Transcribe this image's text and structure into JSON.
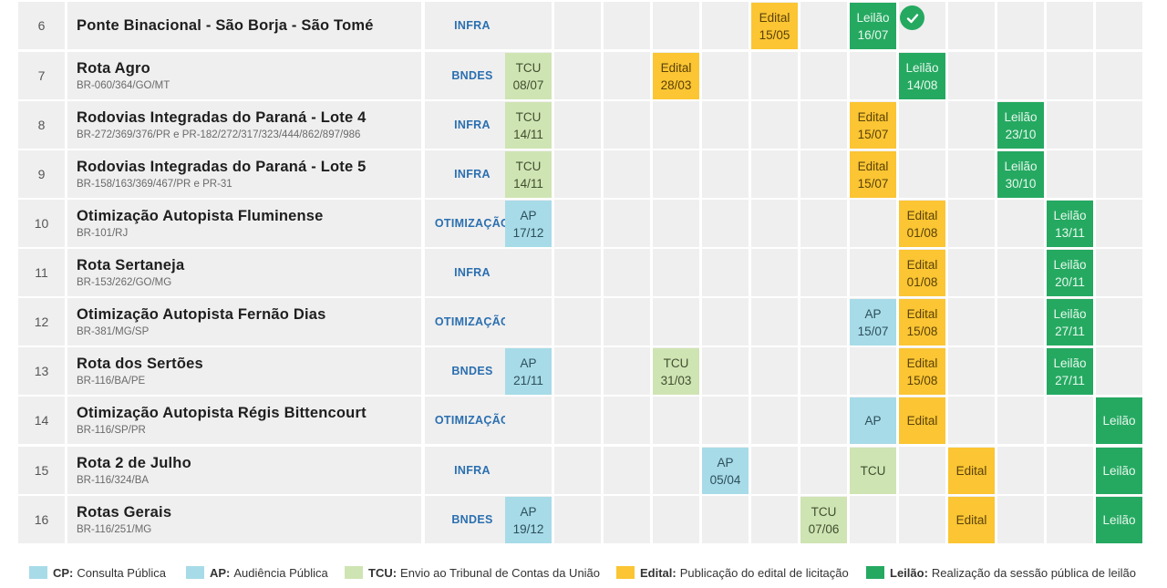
{
  "colors": {
    "CP": "#a7dbe8",
    "AP": "#a7dbe8",
    "TCU": "#cfe4b3",
    "Edital": "#fbc533",
    "Leilao": "#25a961",
    "agency_text": "#2b6fb0"
  },
  "rows": [
    {
      "num": "6",
      "name": "Ponte Binacional - São Borja - São Tomé",
      "sub": "",
      "agency": "INFRA",
      "completed_icon": "check-circle-icon",
      "events": [
        {
          "col": 5,
          "type": "Edital",
          "label": "Edital",
          "date": "15/05"
        },
        {
          "col": 7,
          "type": "Leilao",
          "label": "Leilão",
          "date": "16/07"
        }
      ]
    },
    {
      "num": "7",
      "name": "Rota Agro",
      "sub": "BR-060/364/GO/MT",
      "agency": "BNDES",
      "events": [
        {
          "col": 0,
          "type": "TCU",
          "label": "TCU",
          "date": "08/07"
        },
        {
          "col": 3,
          "type": "Edital",
          "label": "Edital",
          "date": "28/03"
        },
        {
          "col": 8,
          "type": "Leilao",
          "label": "Leilão",
          "date": "14/08"
        }
      ]
    },
    {
      "num": "8",
      "name": "Rodovias Integradas do Paraná - Lote 4",
      "sub": "BR-272/369/376/PR e PR-182/272/317/323/444/862/897/986",
      "agency": "INFRA",
      "events": [
        {
          "col": 0,
          "type": "TCU",
          "label": "TCU",
          "date": "14/11"
        },
        {
          "col": 7,
          "type": "Edital",
          "label": "Edital",
          "date": "15/07"
        },
        {
          "col": 10,
          "type": "Leilao",
          "label": "Leilão",
          "date": "23/10"
        }
      ]
    },
    {
      "num": "9",
      "name": "Rodovias Integradas do Paraná - Lote 5",
      "sub": "BR-158/163/369/467/PR e PR-31",
      "agency": "INFRA",
      "events": [
        {
          "col": 0,
          "type": "TCU",
          "label": "TCU",
          "date": "14/11"
        },
        {
          "col": 7,
          "type": "Edital",
          "label": "Edital",
          "date": "15/07"
        },
        {
          "col": 10,
          "type": "Leilao",
          "label": "Leilão",
          "date": "30/10"
        }
      ]
    },
    {
      "num": "10",
      "name": "Otimização Autopista Fluminense",
      "sub": "BR-101/RJ",
      "agency": "OTIMIZAÇÃO",
      "events": [
        {
          "col": 0,
          "type": "AP",
          "label": "AP",
          "date": "17/12"
        },
        {
          "col": 8,
          "type": "Edital",
          "label": "Edital",
          "date": "01/08"
        },
        {
          "col": 11,
          "type": "Leilao",
          "label": "Leilão",
          "date": "13/11"
        }
      ]
    },
    {
      "num": "11",
      "name": "Rota Sertaneja",
      "sub": "BR-153/262/GO/MG",
      "agency": "INFRA",
      "events": [
        {
          "col": 8,
          "type": "Edital",
          "label": "Edital",
          "date": "01/08"
        },
        {
          "col": 11,
          "type": "Leilao",
          "label": "Leilão",
          "date": "20/11"
        }
      ]
    },
    {
      "num": "12",
      "name": "Otimização Autopista Fernão Dias",
      "sub": "BR-381/MG/SP",
      "agency": "OTIMIZAÇÃO",
      "events": [
        {
          "col": 7,
          "type": "AP",
          "label": "AP",
          "date": "15/07"
        },
        {
          "col": 8,
          "type": "Edital",
          "label": "Edital",
          "date": "15/08"
        },
        {
          "col": 11,
          "type": "Leilao",
          "label": "Leilão",
          "date": "27/11"
        }
      ]
    },
    {
      "num": "13",
      "name": "Rota dos Sertões",
      "sub": "BR-116/BA/PE",
      "agency": "BNDES",
      "events": [
        {
          "col": 0,
          "type": "AP",
          "label": "AP",
          "date": "21/11"
        },
        {
          "col": 3,
          "type": "TCU",
          "label": "TCU",
          "date": "31/03"
        },
        {
          "col": 8,
          "type": "Edital",
          "label": "Edital",
          "date": "15/08"
        },
        {
          "col": 11,
          "type": "Leilao",
          "label": "Leilão",
          "date": "27/11"
        }
      ]
    },
    {
      "num": "14",
      "name": "Otimização Autopista Régis Bittencourt",
      "sub": "BR-116/SP/PR",
      "agency": "OTIMIZAÇÃO",
      "events": [
        {
          "col": 7,
          "type": "AP",
          "label": "AP",
          "date": ""
        },
        {
          "col": 8,
          "type": "Edital",
          "label": "Edital",
          "date": ""
        },
        {
          "col": 12,
          "type": "Leilao",
          "label": "Leilão",
          "date": ""
        }
      ]
    },
    {
      "num": "15",
      "name": "Rota 2 de Julho",
      "sub": "BR-116/324/BA",
      "agency": "INFRA",
      "events": [
        {
          "col": 4,
          "type": "AP",
          "label": "AP",
          "date": "05/04"
        },
        {
          "col": 7,
          "type": "TCU",
          "label": "TCU",
          "date": ""
        },
        {
          "col": 9,
          "type": "Edital",
          "label": "Edital",
          "date": ""
        },
        {
          "col": 12,
          "type": "Leilao",
          "label": "Leilão",
          "date": ""
        }
      ]
    },
    {
      "num": "16",
      "name": "Rotas Gerais",
      "sub": "BR-116/251/MG",
      "agency": "BNDES",
      "events": [
        {
          "col": 0,
          "type": "AP",
          "label": "AP",
          "date": "19/12"
        },
        {
          "col": 6,
          "type": "TCU",
          "label": "TCU",
          "date": "07/06"
        },
        {
          "col": 9,
          "type": "Edital",
          "label": "Edital",
          "date": ""
        },
        {
          "col": 12,
          "type": "Leilao",
          "label": "Leilão",
          "date": ""
        }
      ]
    }
  ],
  "legend": [
    {
      "type": "CP",
      "abbr": "CP:",
      "text": "Consulta Pública"
    },
    {
      "type": "AP",
      "abbr": "AP:",
      "text": "Audiência Pública"
    },
    {
      "type": "TCU",
      "abbr": "TCU:",
      "text": "Envio ao Tribunal de Contas da União"
    },
    {
      "type": "Edital",
      "abbr": "Edital:",
      "text": "Publicação do edital de licitação"
    },
    {
      "type": "Leilao",
      "abbr": "Leilão:",
      "text": "Realização da sessão pública de leilão"
    }
  ]
}
